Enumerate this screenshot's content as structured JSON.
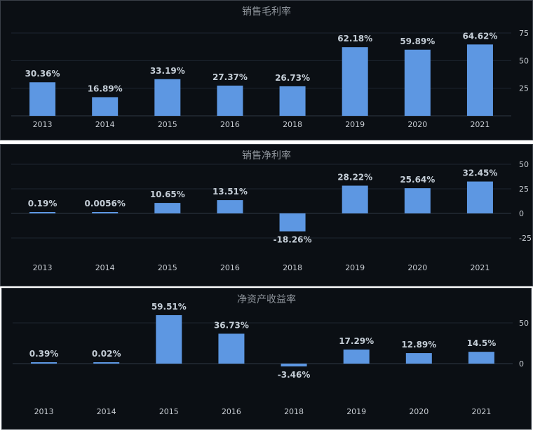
{
  "chart_data": [
    {
      "type": "bar",
      "title": "销售毛利率",
      "categories": [
        "2013",
        "2014",
        "2015",
        "2016",
        "2018",
        "2019",
        "2020",
        "2021"
      ],
      "values": [
        30.36,
        16.89,
        33.19,
        27.37,
        26.73,
        62.18,
        59.89,
        64.62
      ],
      "labels": [
        "30.36%",
        "16.89%",
        "33.19%",
        "27.37%",
        "26.73%",
        "62.18%",
        "59.89%",
        "64.62%"
      ],
      "yticks": [
        25,
        50,
        75
      ],
      "ylim": [
        0,
        82
      ],
      "grid": true,
      "color": "#5d97e2"
    },
    {
      "type": "bar",
      "title": "销售净利率",
      "categories": [
        "2013",
        "2014",
        "2015",
        "2016",
        "2018",
        "2019",
        "2020",
        "2021"
      ],
      "values": [
        0.19,
        0.0056,
        10.65,
        13.51,
        -18.26,
        28.22,
        25.64,
        32.45
      ],
      "labels": [
        "0.19%",
        "0.0056%",
        "10.65%",
        "13.51%",
        "-18.26%",
        "28.22%",
        "25.64%",
        "32.45%"
      ],
      "yticks": [
        50,
        25,
        0,
        -25
      ],
      "ylim": [
        -50,
        50
      ],
      "grid": true,
      "color": "#5d97e2"
    },
    {
      "type": "bar",
      "title": "净资产收益率",
      "categories": [
        "2013",
        "2014",
        "2015",
        "2016",
        "2018",
        "2019",
        "2020",
        "2021"
      ],
      "values": [
        0.39,
        0.02,
        59.51,
        36.73,
        -3.46,
        17.29,
        12.89,
        14.5
      ],
      "labels": [
        "0.39%",
        "0.02%",
        "59.51%",
        "36.73%",
        "-3.46%",
        "17.29%",
        "12.89%",
        "14.5%"
      ],
      "yticks": [
        50,
        0
      ],
      "ylim": [
        -50,
        75
      ],
      "grid": true,
      "color": "#5d97e2"
    }
  ]
}
